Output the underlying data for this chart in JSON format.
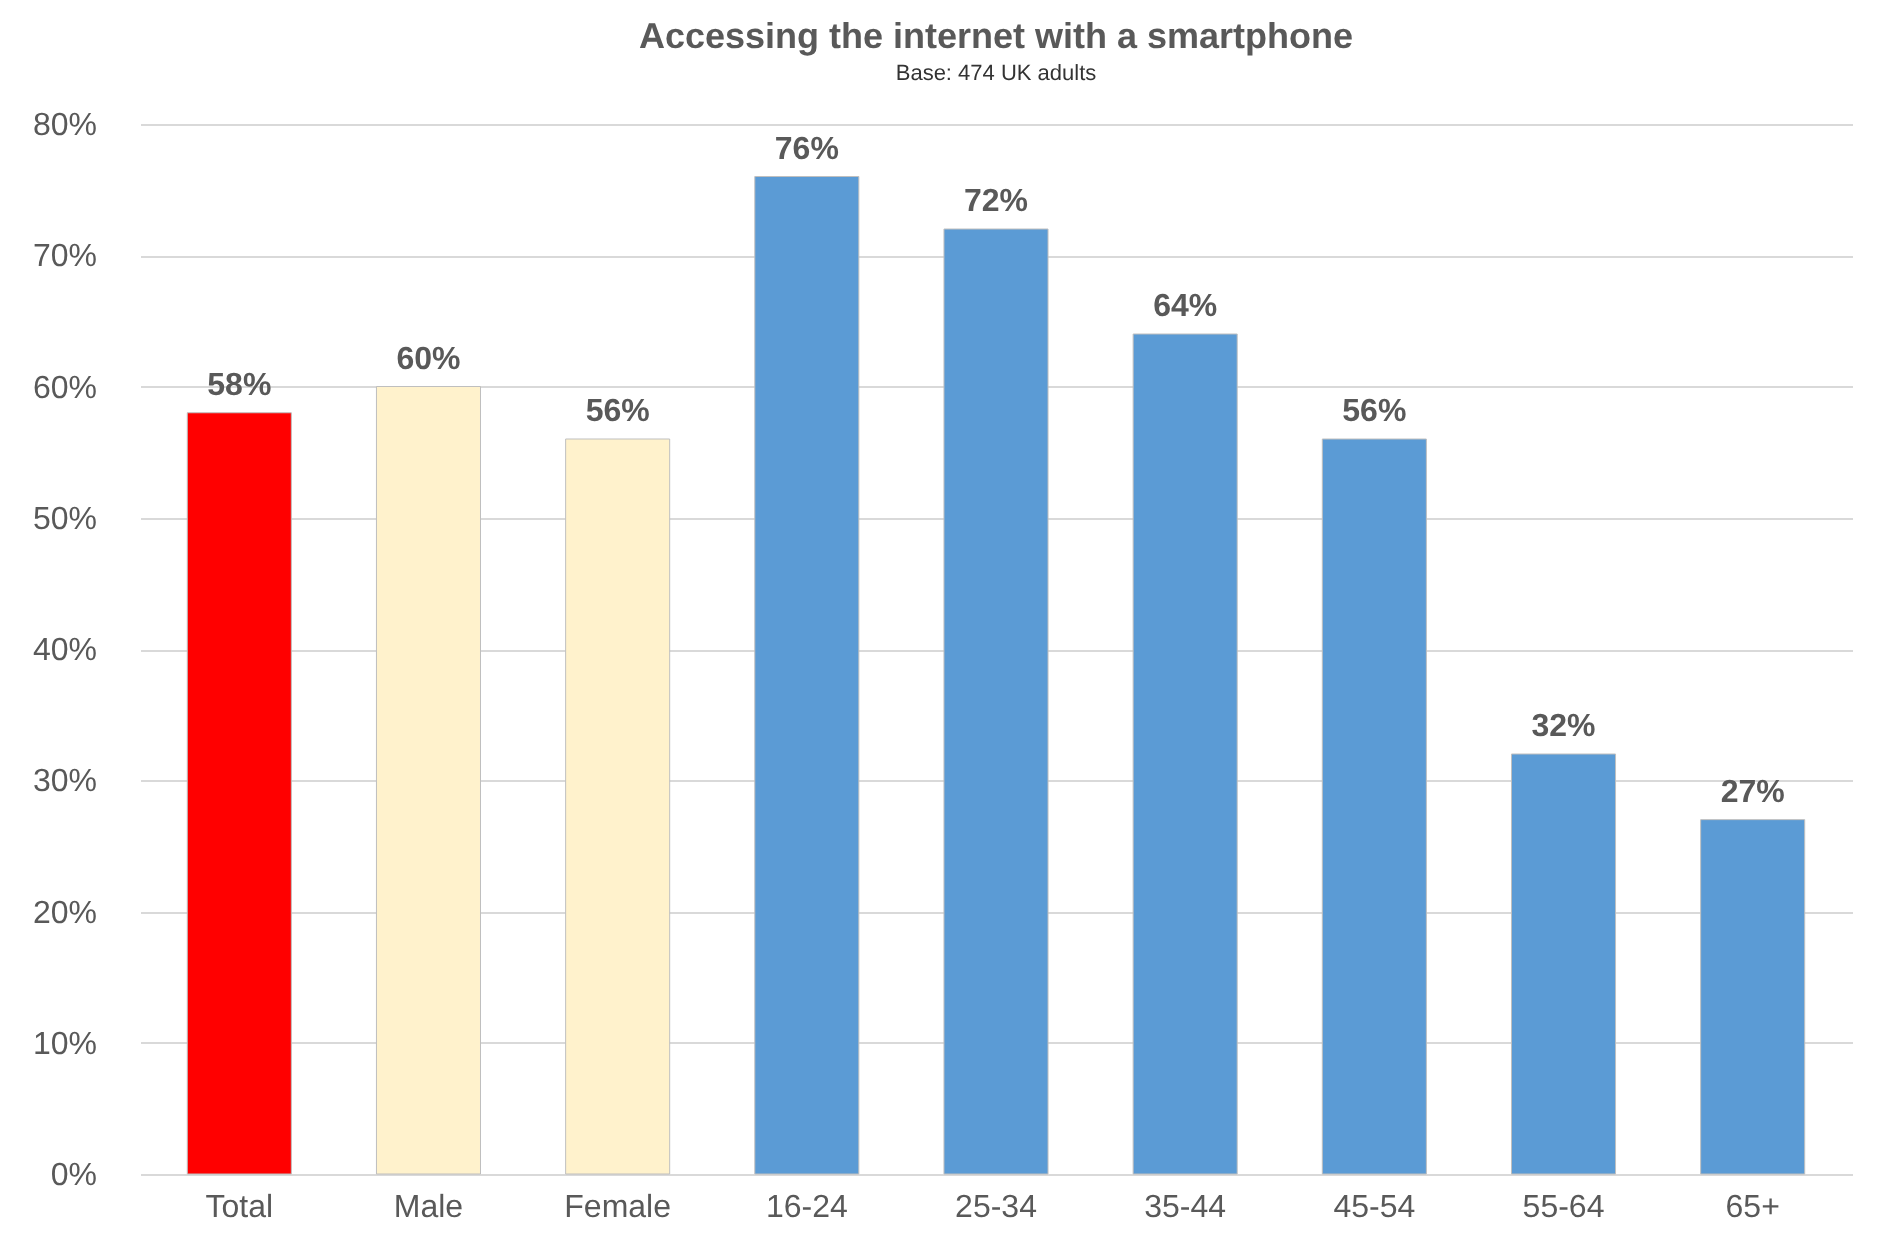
{
  "chart_data": {
    "type": "bar",
    "title": "Accessing the internet with a smartphone",
    "subtitle": "Base: 474 UK adults",
    "categories": [
      "Total",
      "Male",
      "Female",
      "16-24",
      "25-34",
      "35-44",
      "45-54",
      "55-64",
      "65+"
    ],
    "values": [
      58,
      60,
      56,
      76,
      72,
      64,
      56,
      32,
      27
    ],
    "colors": [
      "#ff0000",
      "#fff2cc",
      "#fff2cc",
      "#5b9bd5",
      "#5b9bd5",
      "#5b9bd5",
      "#5b9bd5",
      "#5b9bd5",
      "#5b9bd5"
    ],
    "value_labels": [
      "58%",
      "60%",
      "56%",
      "76%",
      "72%",
      "64%",
      "56%",
      "32%",
      "27%"
    ],
    "ylim": [
      0,
      80
    ],
    "yticks": [
      {
        "value": 0,
        "label": "0%"
      },
      {
        "value": 10,
        "label": "10%"
      },
      {
        "value": 20,
        "label": "20%"
      },
      {
        "value": 30,
        "label": "30%"
      },
      {
        "value": 40,
        "label": "40%"
      },
      {
        "value": 50,
        "label": "50%"
      },
      {
        "value": 60,
        "label": "60%"
      },
      {
        "value": 70,
        "label": "70%"
      },
      {
        "value": 80,
        "label": "80%"
      }
    ],
    "grid": "y"
  }
}
